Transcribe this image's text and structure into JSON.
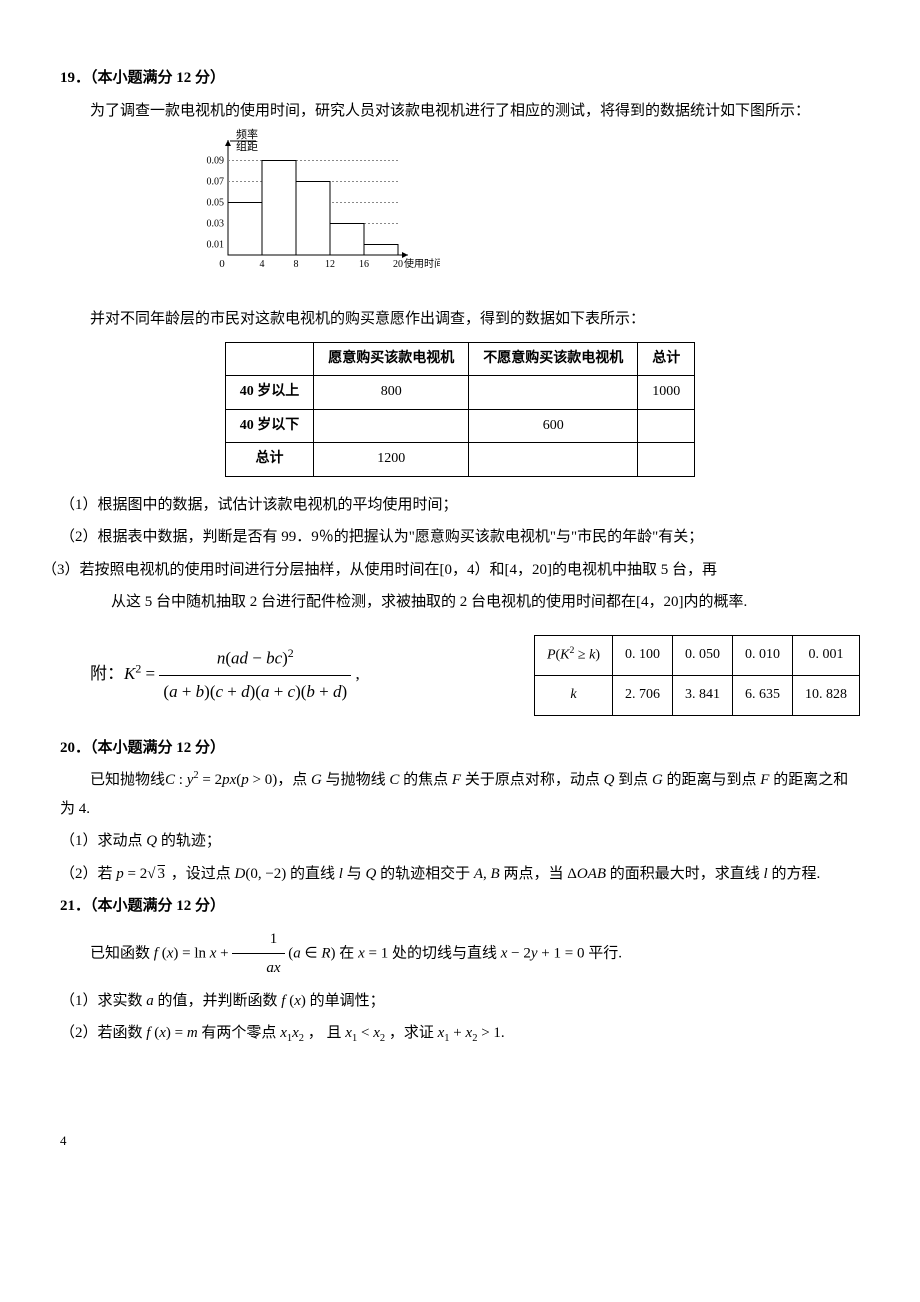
{
  "q19": {
    "heading": "19．（本小题满分 12 分）",
    "intro": "为了调查一款电视机的使用时间，研究人员对该款电视机进行了相应的测试，将得到的数据统计如下图所示：",
    "histogram": {
      "y_label_top": "频率",
      "y_label_bot": "组距",
      "x_label": "使用时间/年",
      "x_ticks": [
        "0",
        "4",
        "8",
        "12",
        "16",
        "20"
      ],
      "y_ticks": [
        "0.01",
        "0.03",
        "0.05",
        "0.07",
        "0.09"
      ],
      "bars": [
        0.05,
        0.09,
        0.07,
        0.03,
        0.01
      ],
      "axis_color": "#000",
      "grid_color": "#888",
      "bar_fill": "#ffffff",
      "bar_stroke": "#000"
    },
    "survey_intro": "并对不同年龄层的市民对这款电视机的购买意愿作出调查，得到的数据如下表所示：",
    "survey_table": {
      "cols": [
        "",
        "愿意购买该款电视机",
        "不愿意购买该款电视机",
        "总计"
      ],
      "rows": [
        [
          "40 岁以上",
          "800",
          "",
          "1000"
        ],
        [
          "40 岁以下",
          "",
          "600",
          ""
        ],
        [
          "总计",
          "1200",
          "",
          ""
        ]
      ]
    },
    "p1": "（1）根据图中的数据，试估计该款电视机的平均使用时间；",
    "p2": "（2）根据表中数据，判断是否有 99．9％的把握认为\"愿意购买该款电视机\"与\"市民的年龄\"有关；",
    "p3a": "（3）若按照电视机的使用时间进行分层抽样，从使用时间在[0，4）和[4，20]的电视机中抽取 5 台，再",
    "p3b": "从这 5 台中随机抽取 2 台进行配件检测，求被抽取的 2 台电视机的使用时间都在[4，20]内的概率.",
    "formula_prefix": "附：",
    "k2_table": {
      "header": [
        "P(K² ≥ k)",
        "0. 100",
        "0. 050",
        "0. 010",
        "0. 001"
      ],
      "row": [
        "k",
        "2. 706",
        "3. 841",
        "6. 635",
        "10. 828"
      ]
    }
  },
  "q20": {
    "heading": "20．（本小题满分 12 分）",
    "intro_a": "已知抛物线",
    "intro_b": "，点",
    "intro_c": "与抛物线",
    "intro_d": "的焦点",
    "intro_e": "关于原点对称，动点",
    "intro_f": "到点",
    "intro_g": "的距离与到点",
    "intro_h": "的距离之和为 4.",
    "p1": "（1）求动点",
    "p1b": "的轨迹；",
    "p2a": "（2）若",
    "p2b": "，设过点",
    "p2c": "的直线",
    "p2d": "与",
    "p2e": "的轨迹相交于",
    "p2f": "两点，当",
    "p2g": "的面积最大时，求直线",
    "p2h": "的方程."
  },
  "q21": {
    "heading": "21．（本小题满分 12 分）",
    "intro_a": "已知函数",
    "intro_b": "在",
    "intro_c": "处的切线与直线",
    "intro_d": "平行.",
    "p1a": "（1）求实数",
    "p1b": "的值，并判断函数",
    "p1c": "的单调性；",
    "p2a": "（2）若函数",
    "p2b": "有两个零点",
    "p2c": "， 且",
    "p2d": "，求证",
    "p2e": "."
  },
  "page_number": "4"
}
